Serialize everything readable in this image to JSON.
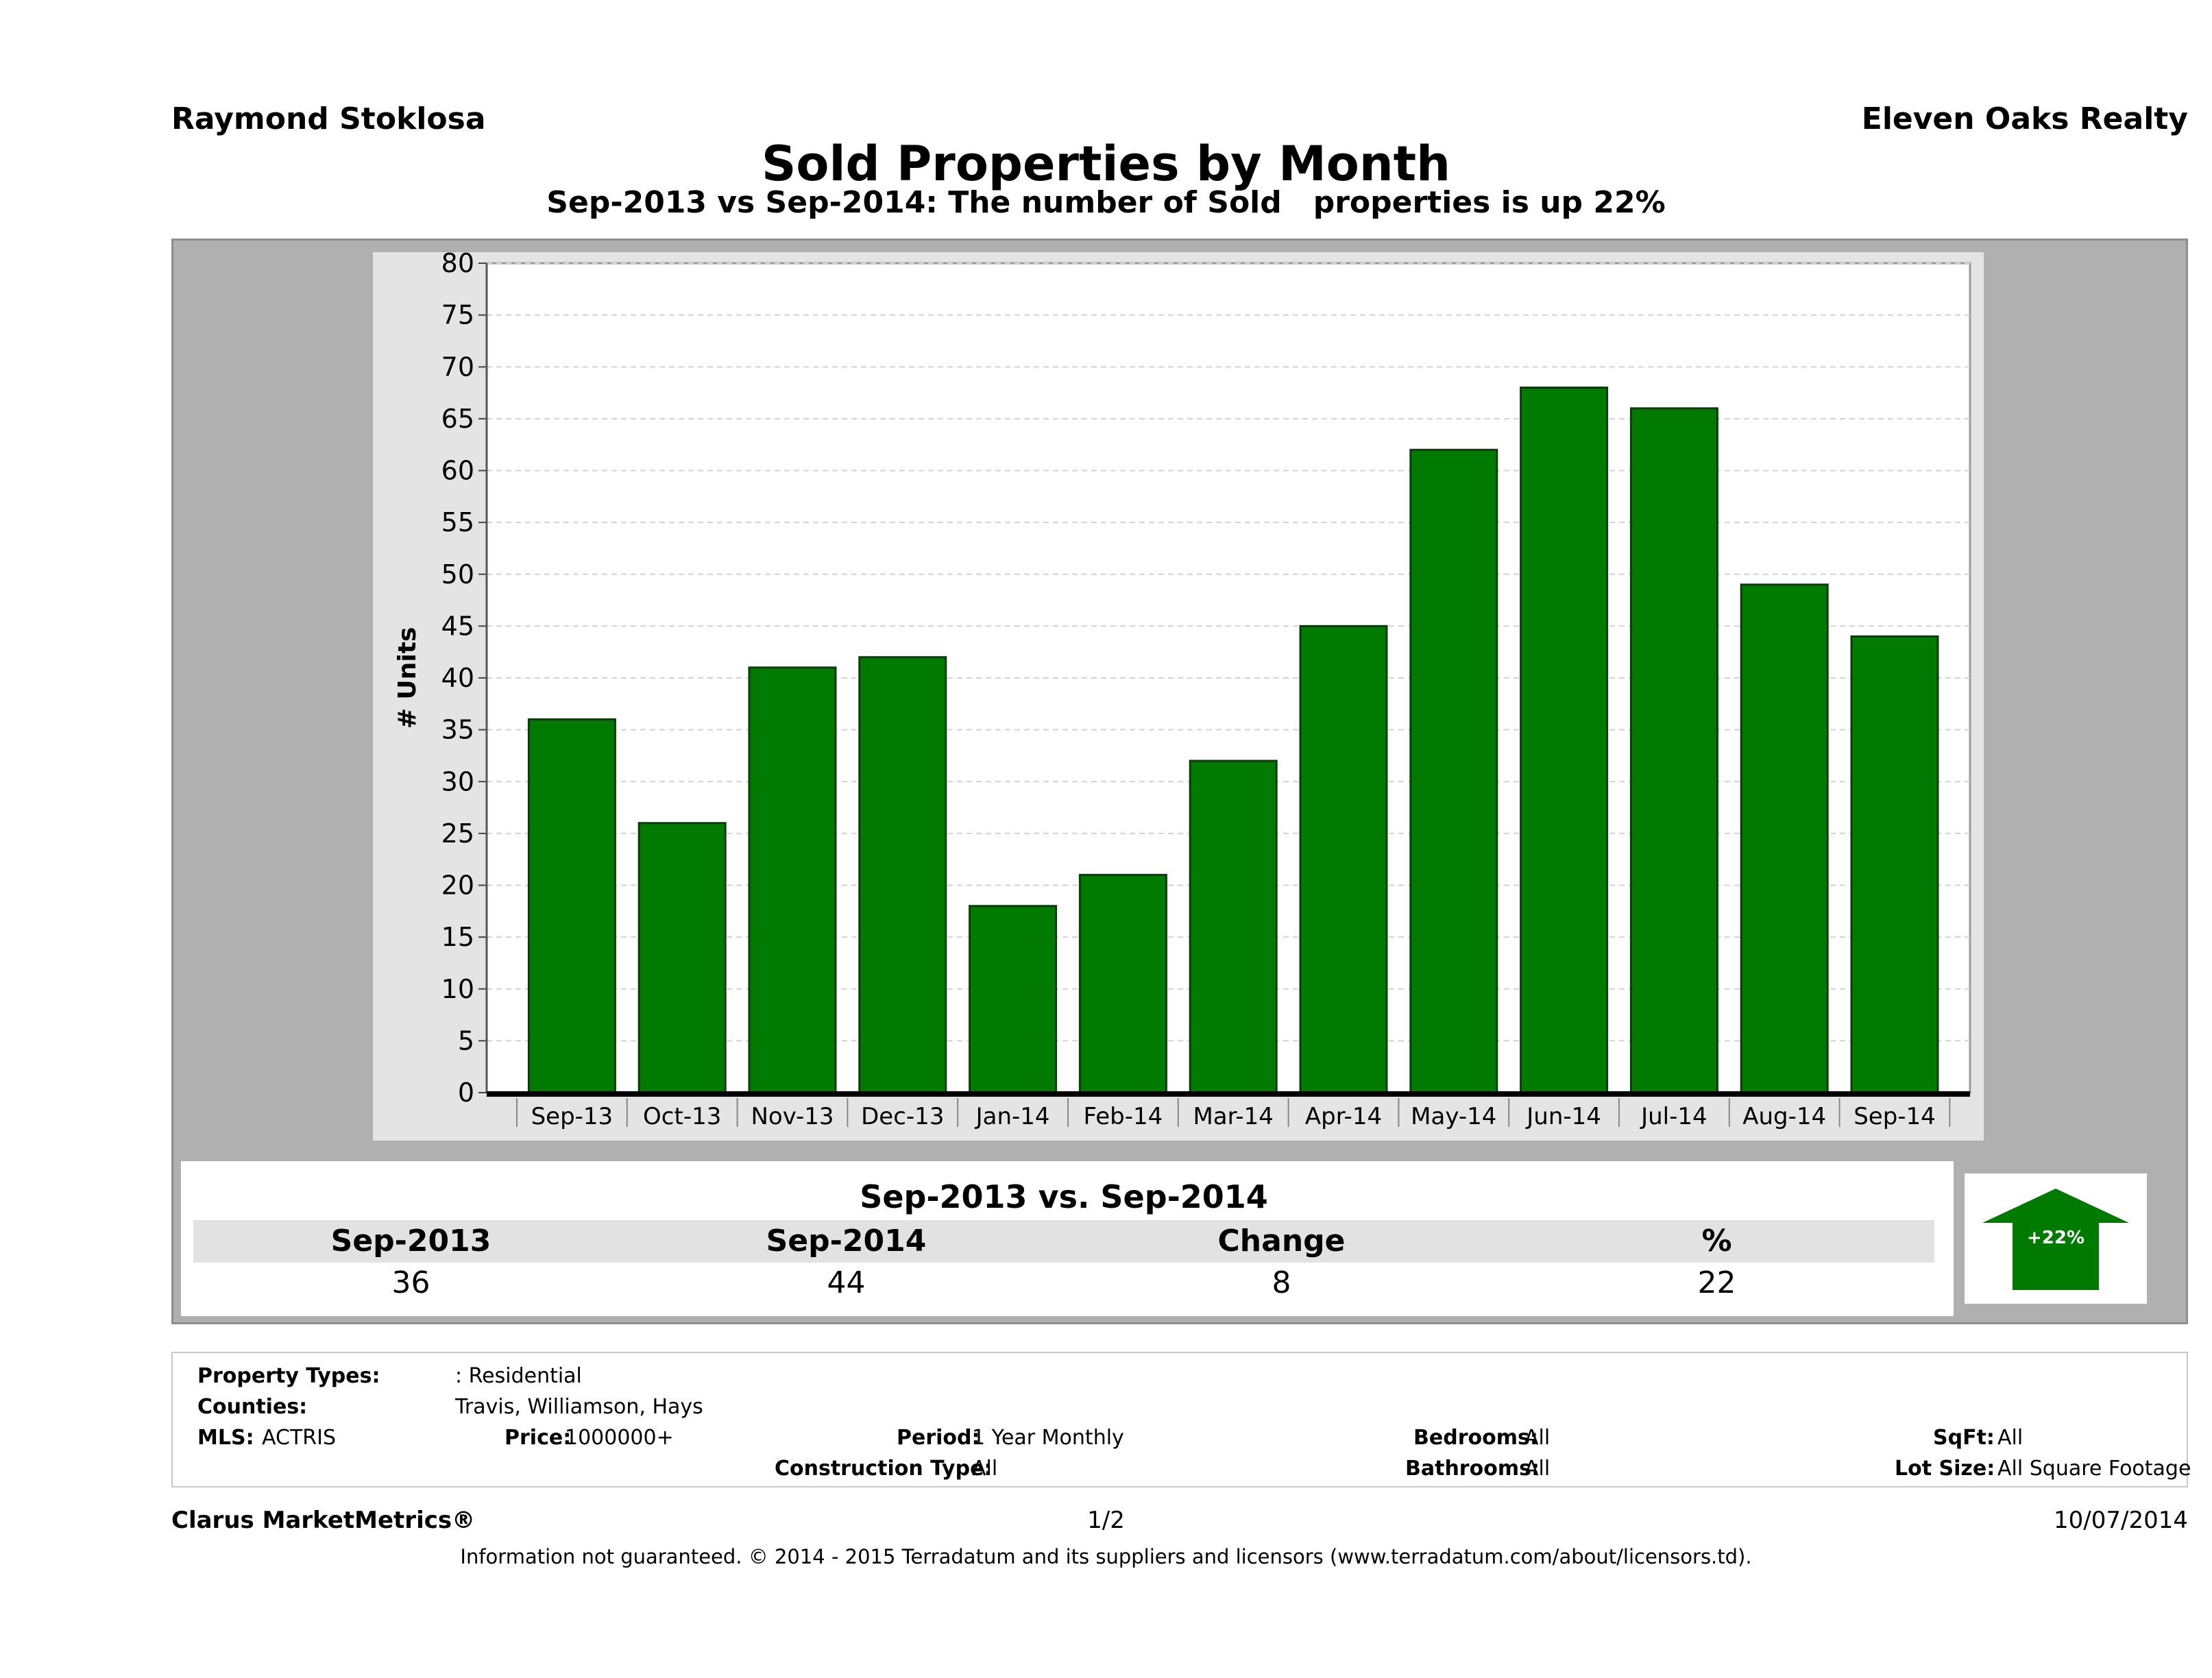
{
  "header": {
    "agent": "Raymond Stoklosa",
    "brokerage": "Eleven Oaks Realty",
    "title": "Sold Properties by Month",
    "subtitle": "Sep-2013 vs Sep-2014: The number of Sold   properties is up 22%"
  },
  "chart_data": {
    "type": "bar",
    "ylabel": "# Units",
    "xlabel": "",
    "ylim": [
      0,
      80
    ],
    "yticks": [
      "0",
      "5",
      "10",
      "15",
      "20",
      "25",
      "30",
      "35",
      "40",
      "45",
      "50",
      "55",
      "60",
      "65",
      "70",
      "75",
      "80"
    ],
    "categories": [
      "Sep-13",
      "Oct-13",
      "Nov-13",
      "Dec-13",
      "Jan-14",
      "Feb-14",
      "Mar-14",
      "Apr-14",
      "May-14",
      "Jun-14",
      "Jul-14",
      "Aug-14",
      "Sep-14"
    ],
    "values": [
      36,
      26,
      41,
      42,
      18,
      21,
      32,
      45,
      62,
      68,
      66,
      49,
      44
    ],
    "bar_color": "#007a00",
    "grid": true
  },
  "summary": {
    "title": "Sep-2013 vs. Sep-2014",
    "headers": [
      "Sep-2013",
      "Sep-2014",
      "Change",
      "%"
    ],
    "values": [
      "36",
      "44",
      "8",
      "22"
    ],
    "badge": "+22%",
    "badge_icon": "up-arrow-icon",
    "badge_color": "#007a00"
  },
  "criteria": {
    "property_types_label": "Property Types:",
    "property_types_value": ": Residential",
    "counties_label": "Counties:",
    "counties_value": "Travis, Williamson, Hays",
    "mls_label": "MLS:",
    "mls_value": "ACTRIS",
    "price_label": "Price:",
    "price_value": "1000000+",
    "period_label": "Period:",
    "period_value": "1 Year Monthly",
    "construction_label": "Construction Type:",
    "construction_value": "All",
    "bedrooms_label": "Bedrooms:",
    "bedrooms_value": "All",
    "bathrooms_label": "Bathrooms:",
    "bathrooms_value": "All",
    "sqft_label": "SqFt:",
    "sqft_value": "All",
    "lotsize_label": "Lot Size:",
    "lotsize_value": "All Square Footage"
  },
  "footer": {
    "brand": "Clarus MarketMetrics®",
    "page": "1/2",
    "date": "10/07/2014",
    "disclaimer": "Information not guaranteed. © 2014 - 2015 Terradatum and its suppliers and licensors (www.terradatum.com/about/licensors.td)."
  }
}
